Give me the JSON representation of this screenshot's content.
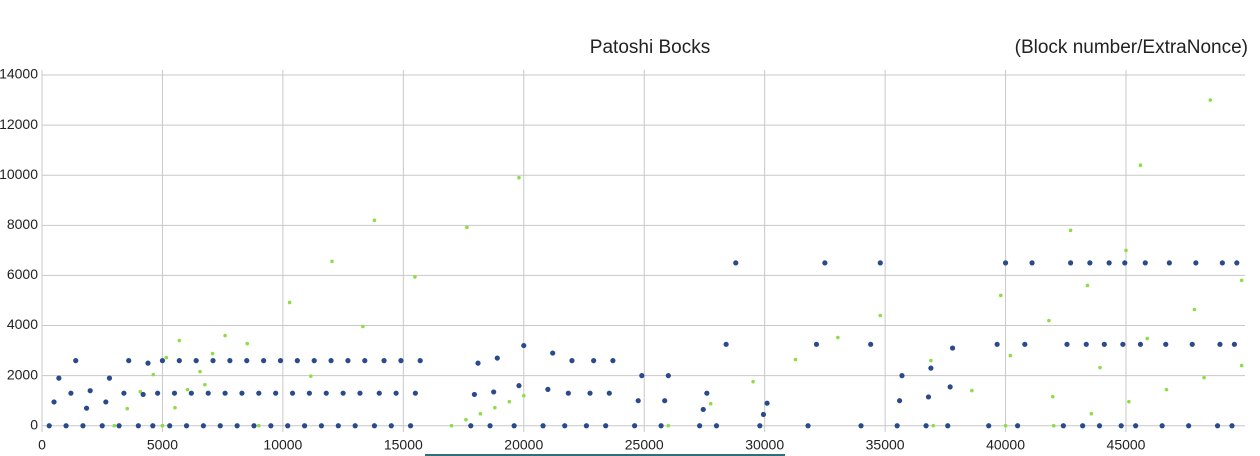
{
  "chart_data": {
    "type": "scatter",
    "title": "Patoshi Bocks",
    "subtitle": "(Block number/ExtraNonce)",
    "xlim": [
      0,
      49940
    ],
    "ylim": [
      -250,
      14200
    ],
    "xticks": [
      0,
      5000,
      10000,
      15000,
      20000,
      25000,
      30000,
      35000,
      40000,
      45000
    ],
    "yticks": [
      0,
      2000,
      4000,
      6000,
      8000,
      10000,
      12000,
      14000
    ],
    "grid": true,
    "series": [
      {
        "color": "#8fdc4a",
        "x": [
          3000,
          3540,
          4080,
          4620,
          5160,
          5700,
          5000,
          5520,
          6040,
          6560,
          7080,
          7600,
          5000,
          6760,
          8520,
          10280,
          12040,
          13800,
          9000,
          11160,
          13320,
          15480,
          17640,
          19800,
          26000,
          27760,
          29520,
          31280,
          33040,
          34800,
          34000,
          36900,
          39800,
          42700,
          45600,
          48500,
          37000,
          38600,
          40200,
          41800,
          43400,
          45000,
          40000,
          41960,
          43920,
          45880,
          47840,
          49800,
          17000,
          17600,
          18200,
          18800,
          19400,
          20000,
          42000,
          43560,
          45120,
          46680,
          48240,
          49800
        ],
        "y": [
          0,
          680,
          1360,
          2040,
          2720,
          3400,
          0,
          720,
          1440,
          2160,
          2880,
          3600,
          0,
          1640,
          3280,
          4920,
          6560,
          8200,
          0,
          1980,
          3960,
          5940,
          7920,
          9900,
          0,
          880,
          1760,
          2640,
          3520,
          4400,
          0,
          2600,
          5200,
          7800,
          10400,
          13000,
          0,
          1400,
          2800,
          4200,
          5600,
          7000,
          0,
          1160,
          2320,
          3480,
          4640,
          5800,
          0,
          240,
          480,
          720,
          960,
          1200,
          0,
          480,
          960,
          1440,
          1920,
          2400
        ]
      },
      {
        "color": "#2b4a8b",
        "x": [
          300,
          500,
          700,
          1000,
          1200,
          1400,
          1700,
          1850,
          2000,
          2500,
          2650,
          2800,
          3200,
          3400,
          3600,
          4000,
          4200,
          4400,
          4600,
          4800,
          5000,
          5300,
          5500,
          5700,
          6000,
          6200,
          6400,
          6700,
          6900,
          7100,
          7400,
          7600,
          7800,
          8100,
          8300,
          8500,
          8800,
          9000,
          9200,
          9500,
          9700,
          9900,
          10200,
          10400,
          10600,
          10900,
          11100,
          11300,
          11600,
          11800,
          12000,
          12300,
          12500,
          12700,
          13000,
          13200,
          13400,
          13800,
          14000,
          14200,
          14500,
          14700,
          14900,
          15300,
          15500,
          15700,
          17800,
          17950,
          18100,
          18600,
          18750,
          18900,
          19600,
          19800,
          20000,
          20800,
          21000,
          21200,
          21700,
          21850,
          22000,
          22600,
          22750,
          22900,
          23400,
          23550,
          23700,
          24600,
          24750,
          24900,
          25700,
          25850,
          26000,
          27300,
          27450,
          27600,
          28000,
          28400,
          28800,
          29800,
          29950,
          30100,
          31800,
          32150,
          32500,
          34000,
          34400,
          34800,
          35500,
          35600,
          35700,
          36700,
          36800,
          36900,
          37600,
          37700,
          37800,
          39300,
          39650,
          40000,
          40500,
          40800,
          41100,
          42400,
          42550,
          42700,
          43200,
          43350,
          43500,
          43900,
          44100,
          44300,
          44800,
          44870,
          44950,
          45400,
          45600,
          45800,
          46500,
          46650,
          46800,
          47600,
          47750,
          47900,
          48800,
          48900,
          49000,
          49400,
          49500,
          49600
        ],
        "y": [
          0,
          950,
          1900,
          0,
          1300,
          2600,
          0,
          700,
          1400,
          0,
          950,
          1900,
          0,
          1300,
          2600,
          0,
          1250,
          2500,
          0,
          1300,
          2600,
          0,
          1300,
          2600,
          0,
          1300,
          2600,
          0,
          1300,
          2600,
          0,
          1300,
          2600,
          0,
          1300,
          2600,
          0,
          1300,
          2600,
          0,
          1300,
          2600,
          0,
          1300,
          2600,
          0,
          1300,
          2600,
          0,
          1300,
          2600,
          0,
          1300,
          2600,
          0,
          1300,
          2600,
          0,
          1300,
          2600,
          0,
          1300,
          2600,
          0,
          1300,
          2600,
          0,
          1250,
          2500,
          0,
          1350,
          2700,
          0,
          1600,
          3200,
          0,
          1450,
          2900,
          0,
          1300,
          2600,
          0,
          1300,
          2600,
          0,
          1300,
          2600,
          0,
          1000,
          2000,
          0,
          1000,
          2000,
          0,
          650,
          1300,
          0,
          3250,
          6500,
          0,
          450,
          900,
          0,
          3250,
          6500,
          0,
          3250,
          6500,
          0,
          1000,
          2000,
          0,
          1150,
          2300,
          0,
          1550,
          3100,
          0,
          3250,
          6500,
          0,
          3250,
          6500,
          0,
          3250,
          6500,
          0,
          3250,
          6500,
          0,
          3250,
          6500,
          0,
          3250,
          6500,
          0,
          3250,
          6500,
          0,
          3250,
          6500,
          0,
          3250,
          6500,
          0,
          3250,
          6500,
          0,
          3250,
          6500
        ]
      }
    ]
  }
}
